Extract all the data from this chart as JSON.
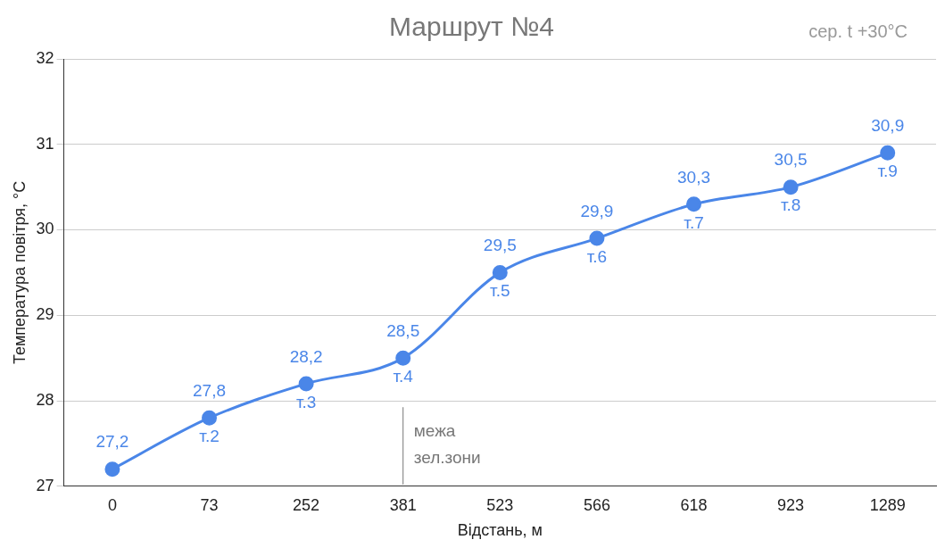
{
  "chart_data": {
    "type": "line",
    "title": "Маршрут №4",
    "xlabel": "Відстань, м",
    "ylabel": "Температура повітря, °C",
    "categories": [
      "0",
      "73",
      "252",
      "381",
      "523",
      "566",
      "618",
      "923",
      "1289"
    ],
    "series": [
      {
        "color": "#4a86e8",
        "values": [
          27.2,
          27.8,
          28.2,
          28.5,
          29.5,
          29.9,
          30.3,
          30.5,
          30.9
        ],
        "value_labels": [
          "27,2",
          "27,8",
          "28,2",
          "28,5",
          "29,5",
          "29,9",
          "30,3",
          "30,5",
          "30,9"
        ]
      }
    ],
    "ylim": [
      27,
      32
    ],
    "yticks": [
      27,
      28,
      29,
      30,
      31,
      32
    ],
    "grid": "y",
    "legend": false,
    "marker": "circle",
    "line_style": "solid",
    "ref_lines": [
      {
        "axis": "x",
        "value": "381",
        "label": "межа зел.зони",
        "color": "#777777"
      }
    ],
    "annotations": [
      "сер. t +30°C",
      {
        "text": "т.2",
        "x": "73",
        "y": 27.8
      },
      {
        "text": "т.3",
        "x": "252",
        "y": 28.2
      },
      {
        "text": "т.4",
        "x": "381",
        "y": 28.5
      },
      {
        "text": "т.5",
        "x": "523",
        "y": 29.5
      },
      {
        "text": "т.6",
        "x": "566",
        "y": 29.9
      },
      {
        "text": "т.7",
        "x": "618",
        "y": 30.3
      },
      {
        "text": "т.8",
        "x": "923",
        "y": 30.5
      },
      {
        "text": "т.9",
        "x": "1289",
        "y": 30.9
      }
    ]
  }
}
